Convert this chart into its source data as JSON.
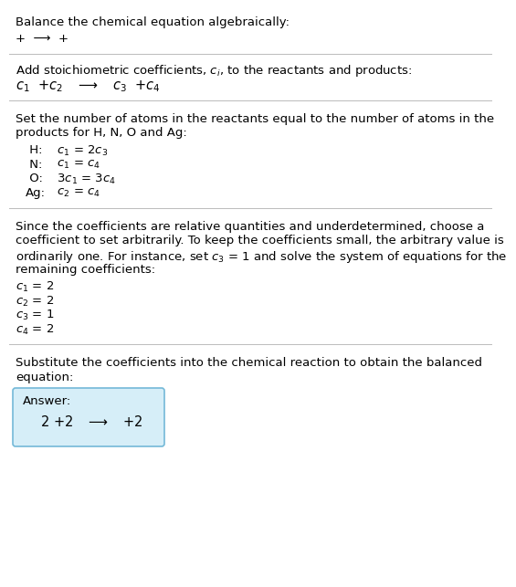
{
  "title": "Balance the chemical equation algebraically:",
  "line1": "+  ⟶  +",
  "section2_header": "Add stoichiometric coefficients, $c_i$, to the reactants and products:",
  "section2_eq_parts": [
    "$c_1$  +$c_2$",
    "  ⟶  $c_3$  +$c_4$"
  ],
  "section3_header_lines": [
    "Set the number of atoms in the reactants equal to the number of atoms in the",
    "products for H, N, O and Ag:"
  ],
  "section3_lines": [
    [
      " H:",
      "  $c_1$ = 2$c_3$"
    ],
    [
      " N:",
      "  $c_1$ = $c_4$"
    ],
    [
      " O:",
      "  3$c_1$ = 3$c_4$"
    ],
    [
      "Ag:",
      "  $c_2$ = $c_4$"
    ]
  ],
  "section4_header_lines": [
    "Since the coefficients are relative quantities and underdetermined, choose a",
    "coefficient to set arbitrarily. To keep the coefficients small, the arbitrary value is",
    "ordinarily one. For instance, set $c_3$ = 1 and solve the system of equations for the",
    "remaining coefficients:"
  ],
  "section4_lines": [
    "$c_1$ = 2",
    "$c_2$ = 2",
    "$c_3$ = 1",
    "$c_4$ = 2"
  ],
  "section5_header_lines": [
    "Substitute the coefficients into the chemical reaction to obtain the balanced",
    "equation:"
  ],
  "answer_label": "Answer:",
  "answer_eq": "  2 +2  ⟶  +2",
  "bg_color": "#ffffff",
  "box_facecolor": "#d6eef8",
  "box_edgecolor": "#74b9d8",
  "text_color": "#000000",
  "divider_color": "#bbbbbb",
  "fs_title": 9.5,
  "fs_body": 9.5,
  "fs_math": 10.5,
  "fs_answer": 10.5
}
